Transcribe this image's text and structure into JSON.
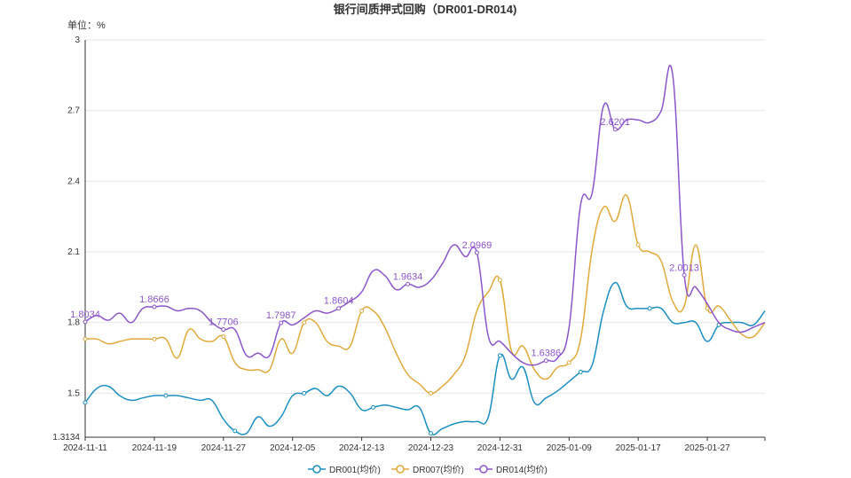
{
  "chart_data": {
    "type": "line",
    "title": "银行间质押式回购（DR001-DR014)",
    "unit_label": "单位：%",
    "ylim": [
      1.3134,
      3
    ],
    "y_ticks": [
      "1.3134",
      "1.5",
      "1.8",
      "2.1",
      "2.4",
      "2.7",
      "3"
    ],
    "x_ticks": [
      "2024-11-11",
      "2024-11-19",
      "2024-11-27",
      "2024-12-05",
      "2024-12-13",
      "2024-12-23",
      "2024-12-31",
      "2025-01-09",
      "2025-01-17",
      "2025-01-27"
    ],
    "x_tick_index": [
      0,
      6,
      12,
      18,
      24,
      30,
      36,
      42,
      48,
      54
    ],
    "x_end_index": 59,
    "grid": true,
    "legend_position": "bottom",
    "series": [
      {
        "name": "DR001(均价)",
        "color": "#1b8fc2",
        "values": [
          1.46,
          1.52,
          1.53,
          1.49,
          1.47,
          1.48,
          1.49,
          1.49,
          1.49,
          1.48,
          1.47,
          1.47,
          1.39,
          1.34,
          1.33,
          1.4,
          1.36,
          1.4,
          1.49,
          1.5,
          1.52,
          1.49,
          1.53,
          1.5,
          1.43,
          1.44,
          1.45,
          1.44,
          1.43,
          1.44,
          1.33,
          1.35,
          1.37,
          1.38,
          1.38,
          1.4,
          1.66,
          1.56,
          1.61,
          1.46,
          1.48,
          1.51,
          1.55,
          1.59,
          1.62,
          1.85,
          1.97,
          1.87,
          1.86,
          1.86,
          1.86,
          1.8,
          1.8,
          1.8,
          1.72,
          1.79,
          1.8,
          1.8,
          1.79,
          1.85
        ],
        "point_index": [
          0,
          7,
          13,
          19,
          25,
          30,
          36,
          43,
          49,
          55
        ]
      },
      {
        "name": "DR007(均价)",
        "color": "#e0a93b",
        "values": [
          1.73,
          1.73,
          1.71,
          1.72,
          1.73,
          1.73,
          1.73,
          1.73,
          1.65,
          1.77,
          1.73,
          1.72,
          1.74,
          1.63,
          1.6,
          1.6,
          1.6,
          1.73,
          1.67,
          1.8,
          1.8,
          1.72,
          1.7,
          1.7,
          1.85,
          1.85,
          1.78,
          1.67,
          1.58,
          1.54,
          1.5,
          1.53,
          1.58,
          1.66,
          1.85,
          1.93,
          1.98,
          1.68,
          1.7,
          1.6,
          1.56,
          1.61,
          1.63,
          1.73,
          2.11,
          2.29,
          2.23,
          2.34,
          2.13,
          2.1,
          2.06,
          1.89,
          1.87,
          2.13,
          1.86,
          1.87,
          1.81,
          1.75,
          1.74,
          1.8
        ],
        "point_index": [
          0,
          6,
          12,
          19,
          24,
          30,
          36,
          42,
          48,
          54
        ]
      },
      {
        "name": "DR014(均价)",
        "color": "#8c55c9",
        "values": [
          1.8034,
          1.83,
          1.81,
          1.84,
          1.8,
          1.86,
          1.8666,
          1.87,
          1.85,
          1.86,
          1.85,
          1.8,
          1.7706,
          1.77,
          1.66,
          1.67,
          1.66,
          1.7987,
          1.79,
          1.82,
          1.85,
          1.84,
          1.8604,
          1.89,
          1.93,
          2.02,
          2.0,
          1.94,
          1.9634,
          1.95,
          1.98,
          2.05,
          2.13,
          2.08,
          2.0969,
          1.74,
          1.72,
          1.67,
          1.63,
          1.62,
          1.6386,
          1.65,
          1.78,
          2.3,
          2.35,
          2.72,
          2.6201,
          2.66,
          2.66,
          2.65,
          2.7,
          2.85,
          2.0013,
          1.95,
          1.88,
          1.8,
          1.77,
          1.76,
          1.78,
          1.8
        ],
        "point_index": [
          0,
          6,
          12,
          17,
          22,
          28,
          34,
          40,
          46,
          52
        ],
        "labels": [
          {
            "index": 0,
            "text": "1.8034"
          },
          {
            "index": 6,
            "text": "1.8666"
          },
          {
            "index": 12,
            "text": "1.7706"
          },
          {
            "index": 17,
            "text": "1.7987"
          },
          {
            "index": 22,
            "text": "1.8604"
          },
          {
            "index": 28,
            "text": "1.9634"
          },
          {
            "index": 34,
            "text": "2.0969"
          },
          {
            "index": 40,
            "text": "1.6386"
          },
          {
            "index": 46,
            "text": "2.6201"
          },
          {
            "index": 52,
            "text": "2.0013"
          }
        ]
      }
    ]
  }
}
